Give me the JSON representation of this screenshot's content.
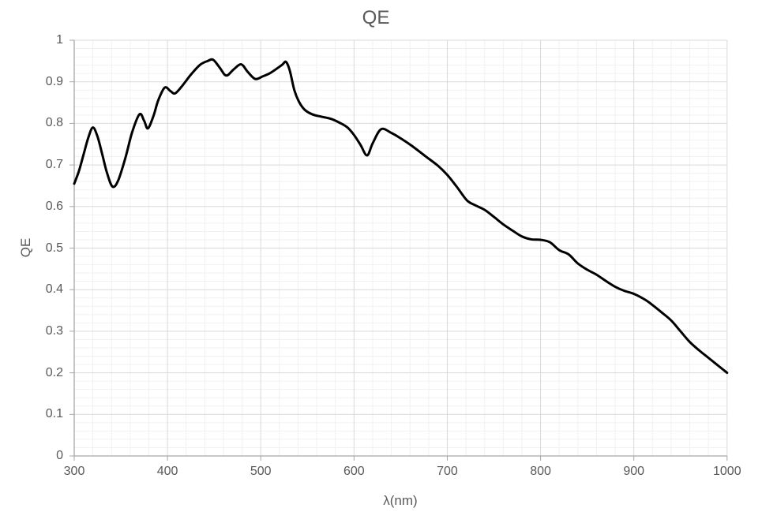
{
  "title": "QE",
  "colors": {
    "text": "#595959",
    "curve": "#000000",
    "major_grid": "#d9d9d9",
    "minor_grid": "#f1f1f1",
    "axis": "#a6a6a6",
    "background": "#ffffff"
  },
  "x_axis": {
    "title": "λ(nm)",
    "tick_labels": [
      "300",
      "400",
      "500",
      "600",
      "700",
      "800",
      "900",
      "1000"
    ]
  },
  "y_axis": {
    "title": "QE",
    "tick_labels": [
      "0",
      "0.1",
      "0.2",
      "0.3",
      "0.4",
      "0.5",
      "0.6",
      "0.7",
      "0.8",
      "0.9",
      "1"
    ]
  },
  "chart_data": {
    "type": "line",
    "title": "QE",
    "xlabel": "λ(nm)",
    "ylabel": "QE",
    "xlim": [
      300,
      1000
    ],
    "ylim": [
      0,
      1
    ],
    "x_major_step": 100,
    "x_minor_step": 20,
    "y_major_step": 0.1,
    "y_minor_step": 0.02,
    "grid": "major and minor gridlines, light gray, both axes",
    "legend": "none",
    "series": [
      {
        "name": "QE",
        "color": "#000000",
        "x": [
          300,
          305,
          310,
          315,
          320,
          325,
          330,
          335,
          341,
          347,
          355,
          362,
          370,
          375,
          379,
          385,
          390,
          397,
          403,
          408,
          415,
          425,
          435,
          443,
          449,
          456,
          463,
          471,
          479,
          486,
          494,
          502,
          510,
          518,
          523,
          527,
          531,
          536,
          541,
          547,
          555,
          565,
          575,
          585,
          593,
          600,
          607,
          614,
          620,
          629,
          640,
          650,
          662,
          676,
          690,
          700,
          710,
          721,
          730,
          740,
          750,
          760,
          770,
          780,
          790,
          800,
          810,
          820,
          830,
          840,
          850,
          860,
          870,
          880,
          890,
          900,
          912,
          920,
          930,
          940,
          950,
          960,
          970,
          980,
          990,
          1000
        ],
        "y": [
          0.655,
          0.685,
          0.725,
          0.765,
          0.79,
          0.768,
          0.726,
          0.682,
          0.648,
          0.662,
          0.718,
          0.778,
          0.822,
          0.806,
          0.788,
          0.818,
          0.855,
          0.886,
          0.878,
          0.872,
          0.888,
          0.917,
          0.941,
          0.95,
          0.953,
          0.934,
          0.915,
          0.93,
          0.942,
          0.924,
          0.907,
          0.913,
          0.921,
          0.933,
          0.941,
          0.948,
          0.928,
          0.88,
          0.852,
          0.833,
          0.822,
          0.816,
          0.811,
          0.801,
          0.79,
          0.772,
          0.748,
          0.723,
          0.752,
          0.786,
          0.777,
          0.764,
          0.746,
          0.722,
          0.698,
          0.676,
          0.648,
          0.615,
          0.603,
          0.592,
          0.575,
          0.557,
          0.542,
          0.528,
          0.521,
          0.52,
          0.514,
          0.495,
          0.485,
          0.463,
          0.448,
          0.436,
          0.421,
          0.407,
          0.397,
          0.39,
          0.376,
          0.363,
          0.345,
          0.326,
          0.3,
          0.274,
          0.254,
          0.236,
          0.218,
          0.2
        ]
      }
    ]
  }
}
